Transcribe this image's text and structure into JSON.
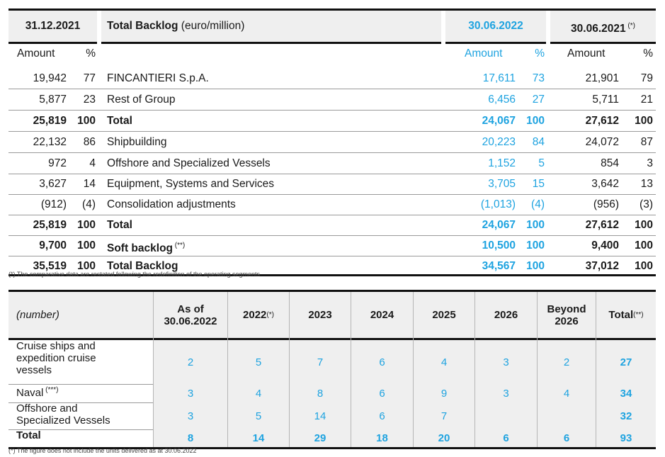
{
  "backlog": {
    "header": {
      "col1_date": "31.12.2021",
      "title_bold": "Total Backlog",
      "title_rest": " (euro/million)",
      "col2_date": "30.06.2022",
      "col3_date": "30.06.2021",
      "col3_note": " (*)"
    },
    "subheader": {
      "amount": "Amount",
      "pct": "%"
    },
    "rows": [
      {
        "a1": "19,942",
        "p1": "77",
        "label": "FINCANTIERI S.p.A.",
        "note": "",
        "a2": "17,611",
        "p2": "73",
        "a3": "21,901",
        "p3": "79",
        "bold": false
      },
      {
        "a1": "5,877",
        "p1": "23",
        "label": "Rest of Group",
        "note": "",
        "a2": "6,456",
        "p2": "27",
        "a3": "5,711",
        "p3": "21",
        "bold": false
      },
      {
        "a1": "25,819",
        "p1": "100",
        "label": "Total",
        "note": "",
        "a2": "24,067",
        "p2": "100",
        "a3": "27,612",
        "p3": "100",
        "bold": true
      },
      {
        "a1": "22,132",
        "p1": "86",
        "label": "Shipbuilding",
        "note": "",
        "a2": "20,223",
        "p2": "84",
        "a3": "24,072",
        "p3": "87",
        "bold": false
      },
      {
        "a1": "972",
        "p1": "4",
        "label": "Offshore and Specialized Vessels",
        "note": "",
        "a2": "1,152",
        "p2": "5",
        "a3": "854",
        "p3": "3",
        "bold": false
      },
      {
        "a1": "3,627",
        "p1": "14",
        "label": "Equipment, Systems and Services",
        "note": "",
        "a2": "3,705",
        "p2": "15",
        "a3": "3,642",
        "p3": "13",
        "bold": false
      },
      {
        "a1": "(912)",
        "p1": "(4)",
        "label": "Consolidation adjustments",
        "note": "",
        "a2": "(1,013)",
        "p2": "(4)",
        "a3": "(956)",
        "p3": "(3)",
        "bold": false
      },
      {
        "a1": "25,819",
        "p1": "100",
        "label": "Total",
        "note": "",
        "a2": "24,067",
        "p2": "100",
        "a3": "27,612",
        "p3": "100",
        "bold": true
      },
      {
        "a1": "9,700",
        "p1": "100",
        "label": "Soft backlog",
        "note": " (**)",
        "a2": "10,500",
        "p2": "100",
        "a3": "9,400",
        "p3": "100",
        "bold": true
      },
      {
        "a1": "35,519",
        "p1": "100",
        "label": "Total Backlog",
        "note": "",
        "a2": "34,567",
        "p2": "100",
        "a3": "37,012",
        "p3": "100",
        "bold": true
      }
    ],
    "footnote": "(*) The comparative data are restated following the redefinition of the operating segments"
  },
  "deliveries": {
    "header": {
      "label": "(number)",
      "as_of": "As of",
      "as_of_date": "30.06.2022",
      "y2022": "2022",
      "y2022_note": " (*)",
      "y2023": "2023",
      "y2024": "2024",
      "y2025": "2025",
      "y2026": "2026",
      "beyond_1": "Beyond",
      "beyond_2": "2026",
      "total": "Total",
      "total_note": " (**)"
    },
    "rows": [
      {
        "label_1": "Cruise ships and",
        "label_2": "expedition cruise",
        "label_3": "vessels",
        "note": "",
        "asof": "2",
        "y2022": "5",
        "y2023": "7",
        "y2024": "6",
        "y2025": "4",
        "y2026": "3",
        "beyond": "2",
        "total": "27"
      },
      {
        "label_1": "Naval",
        "label_2": "",
        "label_3": "",
        "note": " (***)",
        "asof": "3",
        "y2022": "4",
        "y2023": "8",
        "y2024": "6",
        "y2025": "9",
        "y2026": "3",
        "beyond": "4",
        "total": "34"
      },
      {
        "label_1": "Offshore and",
        "label_2": "Specialized Vessels",
        "label_3": "",
        "note": "",
        "asof": "3",
        "y2022": "5",
        "y2023": "14",
        "y2024": "6",
        "y2025": "7",
        "y2026": "",
        "beyond": "",
        "total": "32"
      },
      {
        "label_1": "Total",
        "label_2": "",
        "label_3": "",
        "note": "",
        "asof": "8",
        "y2022": "14",
        "y2023": "29",
        "y2024": "18",
        "y2025": "20",
        "y2026": "6",
        "beyond": "6",
        "total": "93"
      }
    ],
    "footnote": "(*) The figure does not include the units delivered as at 30.06.2022"
  }
}
